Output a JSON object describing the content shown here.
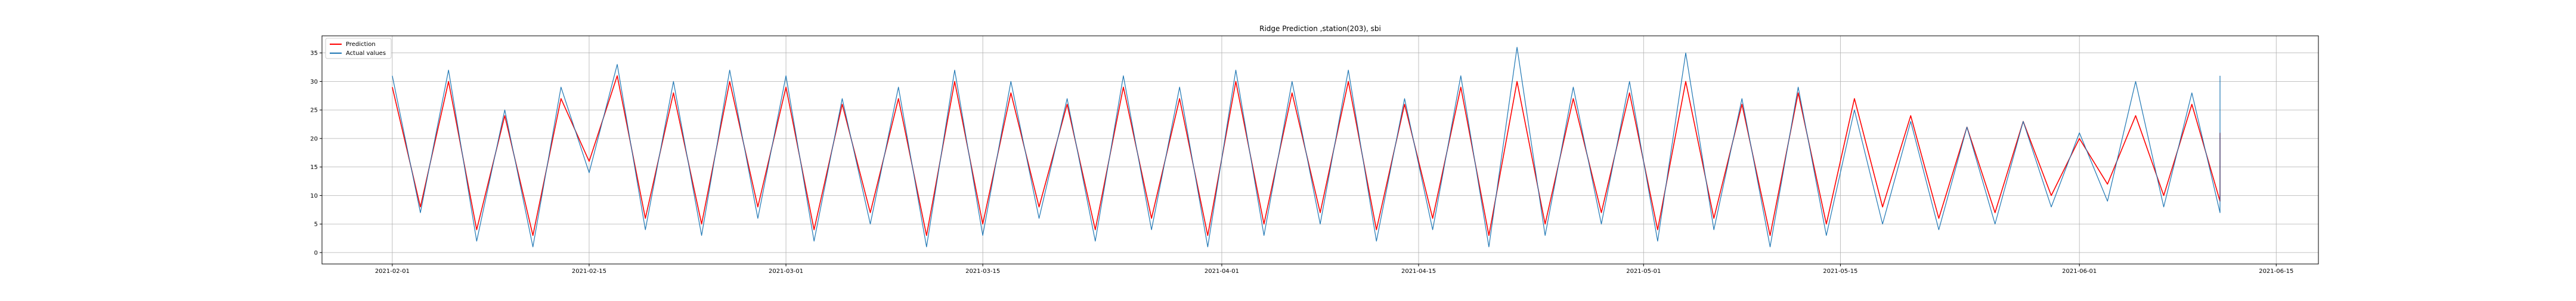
{
  "chart_data": {
    "type": "line",
    "title": "Ridge Prediction ,station(203), sbi",
    "xlabel": "",
    "ylabel": "",
    "grid": true,
    "legend_position": "upper-left",
    "x_axis_type": "date",
    "xlim": [
      "2021-01-27",
      "2021-06-18"
    ],
    "ylim": [
      -2.0,
      38.0
    ],
    "x_ticks": [
      "2021-02-01",
      "2021-02-15",
      "2021-03-01",
      "2021-03-15",
      "2021-04-01",
      "2021-04-15",
      "2021-05-01",
      "2021-05-15",
      "2021-06-01",
      "2021-06-15"
    ],
    "y_ticks": [
      0,
      5,
      10,
      15,
      20,
      25,
      30,
      35
    ],
    "series": [
      {
        "name": "Prediction",
        "color": "#ff0000",
        "x": [
          "2021-02-01",
          "2021-02-03",
          "2021-02-05",
          "2021-02-07",
          "2021-02-09",
          "2021-02-11",
          "2021-02-13",
          "2021-02-15",
          "2021-02-17",
          "2021-02-19",
          "2021-02-21",
          "2021-02-23",
          "2021-02-25",
          "2021-02-27",
          "2021-03-01",
          "2021-03-03",
          "2021-03-05",
          "2021-03-07",
          "2021-03-09",
          "2021-03-11",
          "2021-03-13",
          "2021-03-15",
          "2021-03-17",
          "2021-03-19",
          "2021-03-21",
          "2021-03-23",
          "2021-03-25",
          "2021-03-27",
          "2021-03-29",
          "2021-03-31",
          "2021-04-02",
          "2021-04-04",
          "2021-04-06",
          "2021-04-08",
          "2021-04-10",
          "2021-04-12",
          "2021-04-14",
          "2021-04-16",
          "2021-04-18",
          "2021-04-20",
          "2021-04-22",
          "2021-04-24",
          "2021-04-26",
          "2021-04-28",
          "2021-04-30",
          "2021-05-02",
          "2021-05-04",
          "2021-05-06",
          "2021-05-08",
          "2021-05-10",
          "2021-05-12",
          "2021-05-14",
          "2021-05-16",
          "2021-05-18",
          "2021-05-20",
          "2021-05-22",
          "2021-05-24",
          "2021-05-26",
          "2021-05-28",
          "2021-05-30",
          "2021-06-01",
          "2021-06-03",
          "2021-06-05",
          "2021-06-07",
          "2021-06-09",
          "2021-06-11",
          "2021-06-11"
        ],
        "y": [
          29,
          8,
          30,
          4,
          24,
          3,
          27,
          16,
          31,
          6,
          28,
          5,
          30,
          8,
          29,
          4,
          26,
          7,
          27,
          3,
          30,
          5,
          28,
          8,
          26,
          4,
          29,
          6,
          27,
          3,
          30,
          5,
          28,
          7,
          30,
          4,
          26,
          6,
          29,
          3,
          30,
          5,
          27,
          7,
          28,
          4,
          30,
          6,
          26,
          3,
          28,
          5,
          27,
          8,
          24,
          6,
          22,
          7,
          23,
          10,
          20,
          12,
          24,
          10,
          26,
          9,
          21
        ]
      },
      {
        "name": "Actual values",
        "color": "#1f77b4",
        "x": [
          "2021-02-01",
          "2021-02-03",
          "2021-02-05",
          "2021-02-07",
          "2021-02-09",
          "2021-02-11",
          "2021-02-13",
          "2021-02-15",
          "2021-02-17",
          "2021-02-19",
          "2021-02-21",
          "2021-02-23",
          "2021-02-25",
          "2021-02-27",
          "2021-03-01",
          "2021-03-03",
          "2021-03-05",
          "2021-03-07",
          "2021-03-09",
          "2021-03-11",
          "2021-03-13",
          "2021-03-15",
          "2021-03-17",
          "2021-03-19",
          "2021-03-21",
          "2021-03-23",
          "2021-03-25",
          "2021-03-27",
          "2021-03-29",
          "2021-03-31",
          "2021-04-02",
          "2021-04-04",
          "2021-04-06",
          "2021-04-08",
          "2021-04-10",
          "2021-04-12",
          "2021-04-14",
          "2021-04-16",
          "2021-04-18",
          "2021-04-20",
          "2021-04-22",
          "2021-04-24",
          "2021-04-26",
          "2021-04-28",
          "2021-04-30",
          "2021-05-02",
          "2021-05-04",
          "2021-05-06",
          "2021-05-08",
          "2021-05-10",
          "2021-05-12",
          "2021-05-14",
          "2021-05-16",
          "2021-05-18",
          "2021-05-20",
          "2021-05-22",
          "2021-05-24",
          "2021-05-26",
          "2021-05-28",
          "2021-05-30",
          "2021-06-01",
          "2021-06-03",
          "2021-06-05",
          "2021-06-07",
          "2021-06-09",
          "2021-06-11",
          "2021-06-11"
        ],
        "y": [
          31,
          7,
          32,
          2,
          25,
          1,
          29,
          14,
          33,
          4,
          30,
          3,
          32,
          6,
          31,
          2,
          27,
          5,
          29,
          1,
          32,
          3,
          30,
          6,
          27,
          2,
          31,
          4,
          29,
          1,
          32,
          3,
          30,
          5,
          32,
          2,
          27,
          4,
          31,
          1,
          36,
          3,
          29,
          5,
          30,
          2,
          35,
          4,
          27,
          1,
          29,
          3,
          25,
          5,
          23,
          4,
          22,
          5,
          23,
          8,
          21,
          9,
          30,
          8,
          28,
          7,
          31
        ]
      }
    ]
  }
}
